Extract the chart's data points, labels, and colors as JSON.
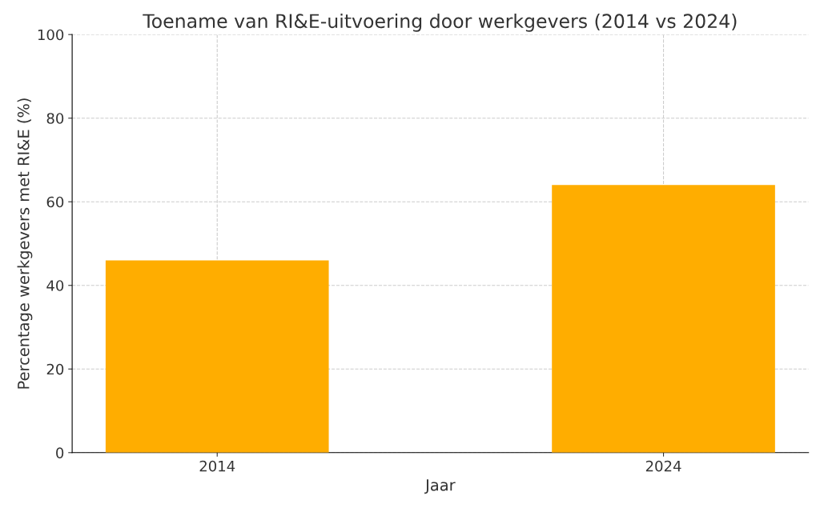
{
  "chart_data": {
    "type": "bar",
    "title": "Toename van RI&E-uitvoering door werkgevers (2014 vs 2024)",
    "xlabel": "Jaar",
    "ylabel": "Percentage werkgevers met RI&E (%)",
    "categories": [
      "2014",
      "2024"
    ],
    "values": [
      46,
      64
    ],
    "color": "#ffad00",
    "ylim": [
      0,
      100
    ],
    "yticks": [
      0,
      20,
      40,
      60,
      80,
      100
    ],
    "grid": true
  }
}
